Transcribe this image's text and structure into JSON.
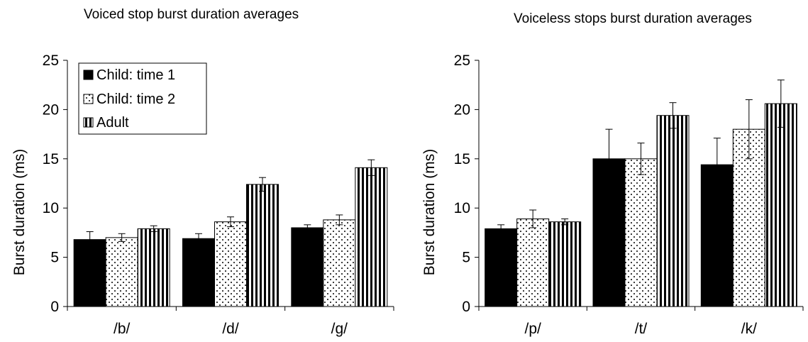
{
  "colors": {
    "child_time_1": "#000000",
    "child_time_2": "#ffffff",
    "adult": "#ffffff",
    "axis": "#000000"
  },
  "legend": {
    "placement": "top-left, inside left chart",
    "items": [
      {
        "label": "Child: time 1",
        "pattern": "solid-black"
      },
      {
        "label": "Child: time 2",
        "pattern": "dots"
      },
      {
        "label": "Adult",
        "pattern": "vertical-stripes"
      }
    ]
  },
  "chart_data": [
    {
      "type": "bar",
      "title": "Voiced stop burst duration averages",
      "ylabel": "Burst duration (ms)",
      "xlabel": "",
      "ylim": [
        0,
        25
      ],
      "yticks": [
        0,
        5,
        10,
        15,
        20,
        25
      ],
      "grid": false,
      "categories": [
        "/b/",
        "/d/",
        "/g/"
      ],
      "series": [
        {
          "name": "Child: time 1",
          "values": [
            6.8,
            6.9,
            8.0
          ],
          "errors": [
            0.8,
            0.5,
            0.3
          ]
        },
        {
          "name": "Child: time 2",
          "values": [
            7.0,
            8.6,
            8.8
          ],
          "errors": [
            0.4,
            0.5,
            0.5
          ]
        },
        {
          "name": "Adult",
          "values": [
            7.9,
            12.4,
            14.1
          ],
          "errors": [
            0.3,
            0.7,
            0.8
          ]
        }
      ]
    },
    {
      "type": "bar",
      "title": "Voiceless stops burst duration averages",
      "ylabel": "Burst duration (ms)",
      "xlabel": "",
      "ylim": [
        0,
        25
      ],
      "yticks": [
        0,
        5,
        10,
        15,
        20,
        25
      ],
      "grid": false,
      "categories": [
        "/p/",
        "/t/",
        "/k/"
      ],
      "series": [
        {
          "name": "Child: time 1",
          "values": [
            7.9,
            15.0,
            14.4
          ],
          "errors": [
            0.4,
            3.0,
            2.7
          ]
        },
        {
          "name": "Child: time 2",
          "values": [
            8.9,
            15.0,
            18.0
          ],
          "errors": [
            0.9,
            1.6,
            3.0
          ]
        },
        {
          "name": "Adult",
          "values": [
            8.6,
            19.4,
            20.6
          ],
          "errors": [
            0.3,
            1.3,
            2.4
          ]
        }
      ]
    }
  ]
}
